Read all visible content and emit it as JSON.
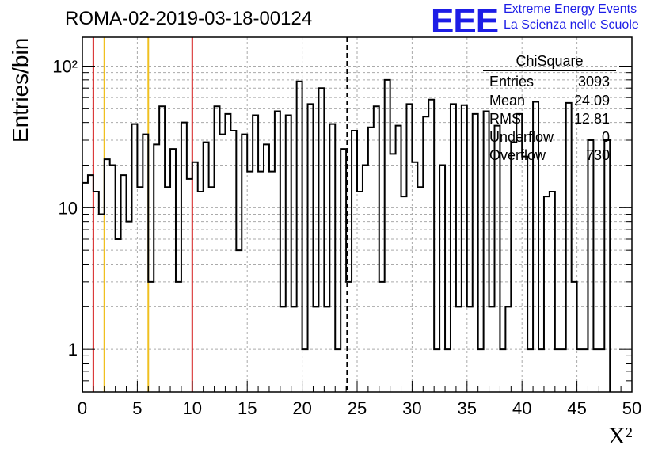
{
  "title": "ROMA-02-2019-03-18-00124",
  "logo": {
    "mark": "EEE",
    "line1": "Extreme Energy Events",
    "line2": "La Scienza nelle Scuole",
    "color": "#1d1de6"
  },
  "stats": {
    "name": "ChiSquare",
    "rows": [
      {
        "label": "Entries",
        "value": "3093"
      },
      {
        "label": "Mean",
        "value": "24.09"
      },
      {
        "label": "RMS",
        "value": "12.81"
      },
      {
        "label": "Underflow",
        "value": "0"
      },
      {
        "label": "Overflow",
        "value": "730"
      }
    ]
  },
  "chart_data": {
    "type": "bar",
    "style": "histogram-step",
    "xlabel": "X²",
    "ylabel": "Entries/bin",
    "xlim": [
      0,
      50
    ],
    "ylim": [
      0.5,
      160
    ],
    "log_y": true,
    "grid": true,
    "x_ticks": [
      "0",
      "5",
      "10",
      "15",
      "20",
      "25",
      "30",
      "35",
      "40",
      "45",
      "50"
    ],
    "y_ticks": [
      {
        "value": 1,
        "label": "1"
      },
      {
        "value": 10,
        "label": "10"
      },
      {
        "value": 100,
        "label": "10²"
      }
    ],
    "bin_width": 0.5,
    "values": [
      15,
      17,
      13,
      9,
      22,
      20,
      6,
      17,
      8,
      39,
      14,
      33,
      3,
      28,
      52,
      14,
      26,
      3,
      40,
      16,
      21,
      13,
      29,
      14,
      52,
      33,
      46,
      35,
      5,
      33,
      18,
      45,
      18,
      28,
      18,
      48,
      2,
      45,
      2,
      78,
      1,
      54,
      2,
      70,
      2,
      39,
      1,
      26,
      3,
      35,
      13,
      20,
      37,
      52,
      3,
      80,
      24,
      38,
      12,
      54,
      21,
      14,
      44,
      58,
      1,
      20,
      1,
      54,
      2,
      53,
      2,
      46,
      1,
      48,
      2,
      38,
      1,
      2,
      29,
      46,
      23,
      1,
      56,
      1,
      12,
      13,
      1,
      1,
      55,
      3,
      1,
      1,
      30,
      1,
      1,
      30
    ],
    "vlines": [
      {
        "x": 1,
        "color": "#d62020",
        "style": "solid"
      },
      {
        "x": 2,
        "color": "#f0c020",
        "style": "solid"
      },
      {
        "x": 6,
        "color": "#f0c020",
        "style": "solid"
      },
      {
        "x": 10,
        "color": "#d62020",
        "style": "solid"
      },
      {
        "x": 24.09,
        "color": "#000000",
        "style": "dashed"
      }
    ]
  }
}
